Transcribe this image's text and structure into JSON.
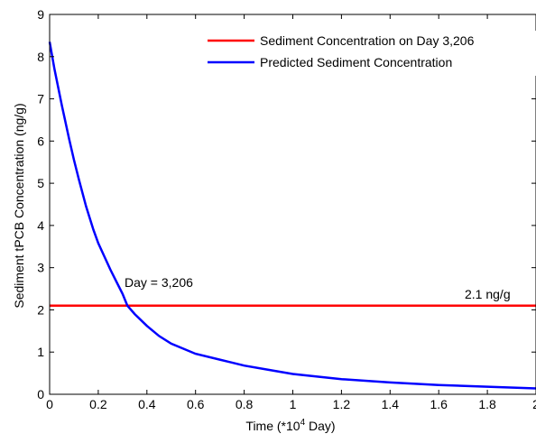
{
  "chart_data": {
    "type": "line",
    "title": "",
    "xlabel": {
      "prefix": "Time (*10",
      "sup": "4",
      "suffix": " Day)"
    },
    "ylabel": "Sediment tPCB Concentration (ng/g)",
    "xlim": [
      0,
      2
    ],
    "ylim": [
      0,
      9
    ],
    "x_ticks": [
      0,
      0.2,
      0.4,
      0.6,
      0.8,
      1,
      1.2,
      1.4,
      1.6,
      1.8,
      2
    ],
    "x_tick_labels": [
      "0",
      "0.2",
      "0.4",
      "0.6",
      "0.8",
      "1",
      "1.2",
      "1.4",
      "1.6",
      "1.8",
      "2"
    ],
    "y_ticks": [
      0,
      1,
      2,
      3,
      4,
      5,
      6,
      7,
      8,
      9
    ],
    "y_tick_labels": [
      "0",
      "1",
      "2",
      "3",
      "4",
      "5",
      "6",
      "7",
      "8",
      "9"
    ],
    "grid": false,
    "legend_position": "top-right",
    "series": [
      {
        "name": "Sediment Concentration on Day 3,206",
        "color": "#ff0000",
        "x": [
          0,
          2
        ],
        "y": [
          2.1,
          2.1
        ]
      },
      {
        "name": "Predicted Sediment Concentration",
        "color": "#0000ff",
        "x": [
          0,
          0.02,
          0.05,
          0.08,
          0.1,
          0.12,
          0.15,
          0.18,
          0.2,
          0.25,
          0.3,
          0.32,
          0.35,
          0.4,
          0.45,
          0.5,
          0.6,
          0.7,
          0.8,
          0.9,
          1.0,
          1.2,
          1.4,
          1.6,
          1.8,
          2.0
        ],
        "y": [
          8.35,
          7.7,
          6.85,
          6.05,
          5.55,
          5.1,
          4.45,
          3.9,
          3.58,
          2.95,
          2.38,
          2.1,
          1.9,
          1.62,
          1.38,
          1.2,
          0.96,
          0.82,
          0.68,
          0.58,
          0.48,
          0.36,
          0.28,
          0.22,
          0.18,
          0.14
        ]
      }
    ],
    "annotations": [
      {
        "text": "Day = 3,206",
        "x": 0.32,
        "y": 2.1
      },
      {
        "text": "2.1 ng/g",
        "x": 2.0,
        "y": 2.1
      }
    ]
  }
}
